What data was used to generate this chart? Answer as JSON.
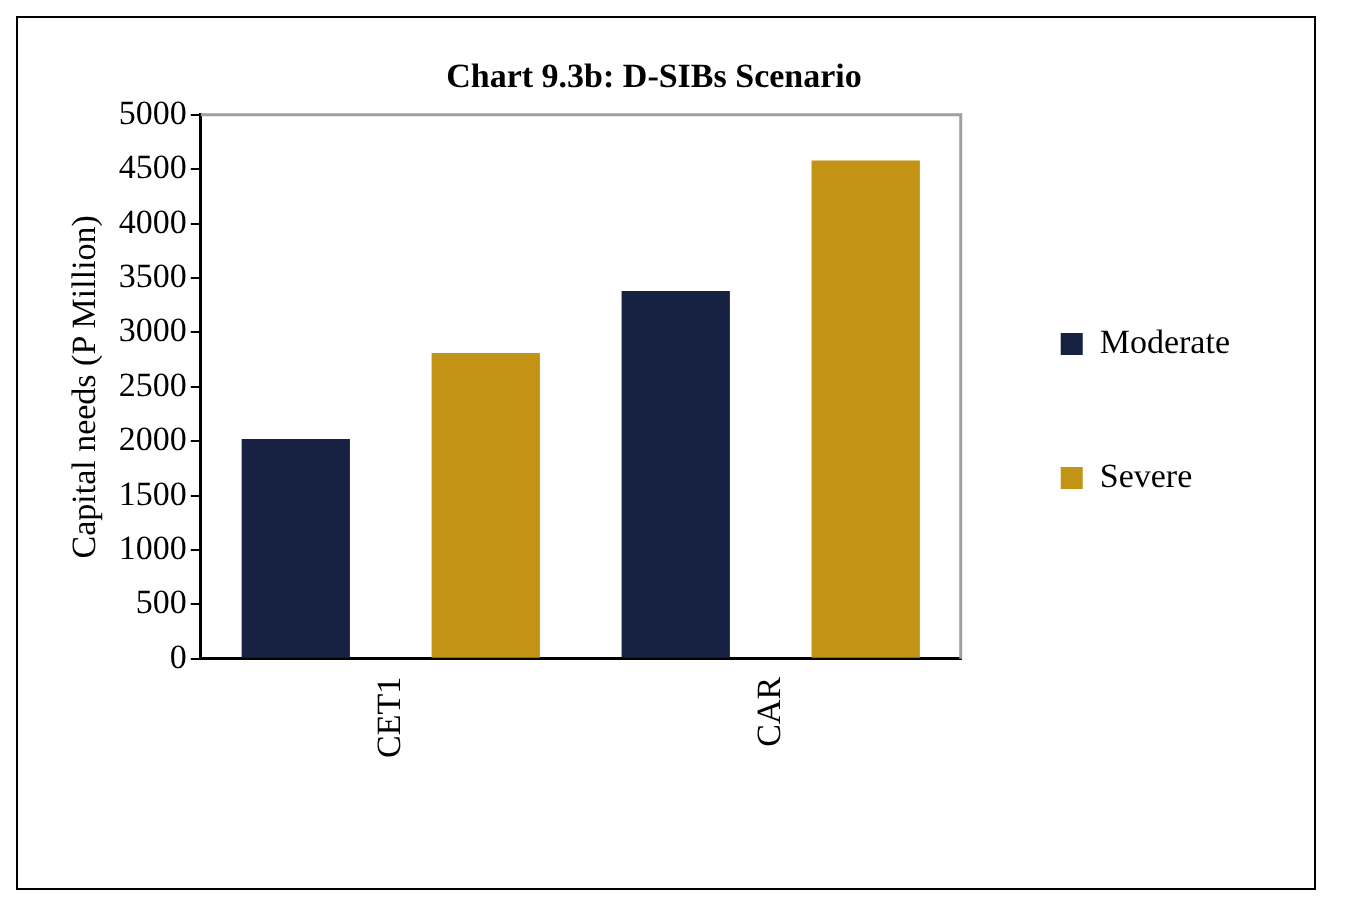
{
  "chart_data": {
    "type": "bar",
    "title": "Chart 9.3b: D-SIBs Scenario",
    "ylabel": "Capital needs (P Million)",
    "categories": [
      "CET1",
      "CAR"
    ],
    "series": [
      {
        "name": "Moderate",
        "color": "#172242",
        "values": [
          2020,
          3380
        ]
      },
      {
        "name": "Severe",
        "color": "#c39316",
        "values": [
          2810,
          4580
        ]
      }
    ],
    "ylim": [
      0,
      5000
    ],
    "yticks": [
      0,
      500,
      1000,
      1500,
      2000,
      2500,
      3000,
      3500,
      4000,
      4500,
      5000
    ],
    "grid": false,
    "legend": "right"
  }
}
